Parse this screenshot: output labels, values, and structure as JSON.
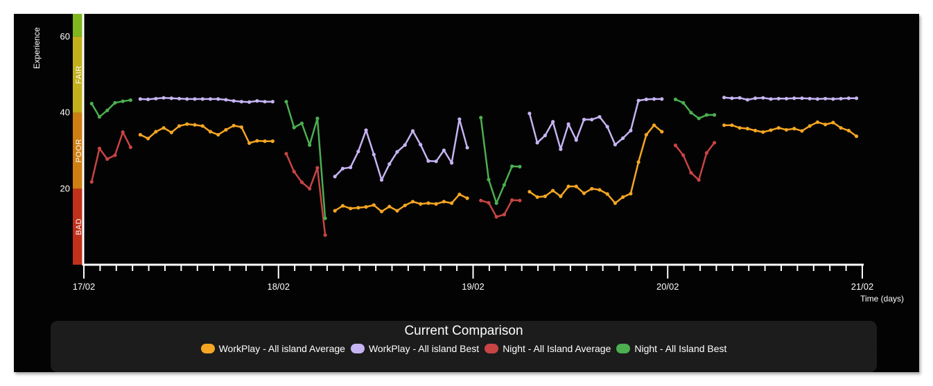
{
  "colors": {
    "workplay_avg": "#f5a623",
    "workplay_best": "#c6b4f2",
    "night_avg": "#c94444",
    "night_best": "#4caf50",
    "axis": "#ffffff"
  },
  "chart_data": {
    "type": "line",
    "ylabel": "Experience",
    "xlabel": "Time (days)",
    "ylim": [
      0,
      66
    ],
    "y_ticks": [
      20,
      40,
      60
    ],
    "x_ticks": [
      "17/02",
      "18/02",
      "19/02",
      "20/02",
      "21/02"
    ],
    "xlim": [
      0,
      4
    ],
    "bands": [
      {
        "label": "BAD",
        "from": 0,
        "to": 20,
        "color": "#c0301b"
      },
      {
        "label": "POOR",
        "from": 20,
        "to": 40,
        "color": "#cf7e12"
      },
      {
        "label": "FAIR",
        "from": 40,
        "to": 60,
        "color": "#c3b11c"
      },
      {
        "label": "",
        "from": 60,
        "to": 66,
        "color": "#7fb81e"
      }
    ],
    "legend_position": "bottom",
    "series": [
      {
        "name": "WorkPlay - All island Average",
        "color_key": "workplay_avg",
        "segments": [
          [
            [
              0.29,
              34.2
            ],
            [
              0.33,
              33.2
            ],
            [
              0.37,
              35.0
            ],
            [
              0.41,
              36.0
            ],
            [
              0.45,
              34.8
            ],
            [
              0.49,
              36.5
            ],
            [
              0.53,
              37.0
            ],
            [
              0.57,
              36.8
            ],
            [
              0.61,
              36.5
            ],
            [
              0.65,
              35.0
            ],
            [
              0.69,
              34.2
            ],
            [
              0.73,
              35.5
            ],
            [
              0.77,
              36.6
            ],
            [
              0.81,
              36.2
            ],
            [
              0.85,
              32.0
            ],
            [
              0.89,
              32.6
            ],
            [
              0.93,
              32.5
            ],
            [
              0.97,
              32.5
            ]
          ],
          [
            [
              1.29,
              14.2
            ],
            [
              1.33,
              15.5
            ],
            [
              1.37,
              14.8
            ],
            [
              1.41,
              15.0
            ],
            [
              1.45,
              15.2
            ],
            [
              1.49,
              15.7
            ],
            [
              1.53,
              14.0
            ],
            [
              1.57,
              15.3
            ],
            [
              1.61,
              14.2
            ],
            [
              1.65,
              15.6
            ],
            [
              1.69,
              16.6
            ],
            [
              1.73,
              16.0
            ],
            [
              1.77,
              16.2
            ],
            [
              1.81,
              16.0
            ],
            [
              1.85,
              16.6
            ],
            [
              1.89,
              16.2
            ],
            [
              1.93,
              18.5
            ],
            [
              1.97,
              17.5
            ]
          ],
          [
            [
              2.29,
              19.2
            ],
            [
              2.33,
              17.8
            ],
            [
              2.37,
              18.0
            ],
            [
              2.41,
              19.5
            ],
            [
              2.45,
              18.0
            ],
            [
              2.49,
              20.6
            ],
            [
              2.53,
              20.6
            ],
            [
              2.57,
              18.8
            ],
            [
              2.61,
              20.0
            ],
            [
              2.65,
              19.7
            ],
            [
              2.69,
              18.6
            ],
            [
              2.73,
              16.2
            ],
            [
              2.77,
              17.8
            ],
            [
              2.81,
              18.7
            ],
            [
              2.85,
              27.0
            ],
            [
              2.89,
              34.2
            ],
            [
              2.93,
              36.7
            ],
            [
              2.97,
              35.0
            ]
          ],
          [
            [
              3.29,
              36.7
            ],
            [
              3.33,
              36.7
            ],
            [
              3.37,
              36.0
            ],
            [
              3.41,
              35.8
            ],
            [
              3.45,
              35.3
            ],
            [
              3.49,
              34.9
            ],
            [
              3.53,
              35.4
            ],
            [
              3.57,
              36.0
            ],
            [
              3.61,
              35.5
            ],
            [
              3.65,
              35.8
            ],
            [
              3.69,
              35.2
            ],
            [
              3.73,
              36.5
            ],
            [
              3.77,
              37.5
            ],
            [
              3.81,
              36.9
            ],
            [
              3.85,
              37.4
            ],
            [
              3.89,
              36.0
            ],
            [
              3.93,
              35.3
            ],
            [
              3.97,
              33.8
            ]
          ]
        ]
      },
      {
        "name": "WorkPlay - All island Best",
        "color_key": "workplay_best",
        "segments": [
          [
            [
              0.29,
              43.6
            ],
            [
              0.33,
              43.5
            ],
            [
              0.37,
              43.7
            ],
            [
              0.41,
              43.9
            ],
            [
              0.45,
              43.8
            ],
            [
              0.49,
              43.7
            ],
            [
              0.53,
              43.6
            ],
            [
              0.57,
              43.6
            ],
            [
              0.61,
              43.6
            ],
            [
              0.65,
              43.6
            ],
            [
              0.69,
              43.6
            ],
            [
              0.73,
              43.4
            ],
            [
              0.77,
              43.1
            ],
            [
              0.81,
              42.9
            ],
            [
              0.85,
              42.8
            ],
            [
              0.89,
              43.1
            ],
            [
              0.93,
              42.9
            ],
            [
              0.97,
              42.9
            ]
          ],
          [
            [
              1.29,
              23.2
            ],
            [
              1.33,
              25.3
            ],
            [
              1.37,
              25.6
            ],
            [
              1.41,
              29.8
            ],
            [
              1.45,
              35.4
            ],
            [
              1.49,
              29.0
            ],
            [
              1.53,
              22.3
            ],
            [
              1.57,
              26.5
            ],
            [
              1.61,
              29.7
            ],
            [
              1.65,
              31.5
            ],
            [
              1.69,
              35.2
            ],
            [
              1.73,
              31.6
            ],
            [
              1.77,
              27.3
            ],
            [
              1.81,
              27.2
            ],
            [
              1.85,
              30.1
            ],
            [
              1.89,
              26.8
            ],
            [
              1.93,
              38.3
            ],
            [
              1.97,
              30.8
            ]
          ],
          [
            [
              2.29,
              39.8
            ],
            [
              2.33,
              32.1
            ],
            [
              2.37,
              34.0
            ],
            [
              2.41,
              37.6
            ],
            [
              2.45,
              30.4
            ],
            [
              2.49,
              37.0
            ],
            [
              2.53,
              32.8
            ],
            [
              2.57,
              38.2
            ],
            [
              2.61,
              38.2
            ],
            [
              2.65,
              38.9
            ],
            [
              2.69,
              36.3
            ],
            [
              2.73,
              31.6
            ],
            [
              2.77,
              33.3
            ],
            [
              2.81,
              35.3
            ],
            [
              2.85,
              43.2
            ],
            [
              2.89,
              43.5
            ],
            [
              2.93,
              43.6
            ],
            [
              2.97,
              43.6
            ]
          ],
          [
            [
              3.29,
              44.0
            ],
            [
              3.33,
              43.8
            ],
            [
              3.37,
              43.9
            ],
            [
              3.41,
              43.4
            ],
            [
              3.45,
              43.8
            ],
            [
              3.49,
              43.9
            ],
            [
              3.53,
              43.6
            ],
            [
              3.57,
              43.7
            ],
            [
              3.61,
              43.7
            ],
            [
              3.65,
              43.8
            ],
            [
              3.69,
              43.8
            ],
            [
              3.73,
              43.7
            ],
            [
              3.77,
              43.6
            ],
            [
              3.81,
              43.7
            ],
            [
              3.85,
              43.6
            ],
            [
              3.89,
              43.7
            ],
            [
              3.93,
              43.8
            ],
            [
              3.97,
              43.8
            ]
          ]
        ]
      },
      {
        "name": "Night - All Island Average",
        "color_key": "night_avg",
        "segments": [
          [
            [
              0.04,
              21.8
            ],
            [
              0.08,
              30.6
            ],
            [
              0.12,
              27.8
            ],
            [
              0.16,
              28.8
            ],
            [
              0.2,
              34.9
            ],
            [
              0.24,
              30.9
            ]
          ],
          [
            [
              1.04,
              29.2
            ],
            [
              1.08,
              24.5
            ],
            [
              1.12,
              21.7
            ],
            [
              1.16,
              20.0
            ],
            [
              1.2,
              25.5
            ],
            [
              1.24,
              7.8
            ]
          ],
          [
            [
              2.04,
              16.9
            ],
            [
              2.08,
              16.3
            ],
            [
              2.12,
              12.6
            ],
            [
              2.16,
              13.2
            ],
            [
              2.2,
              17.0
            ],
            [
              2.24,
              16.9
            ]
          ],
          [
            [
              3.04,
              31.4
            ],
            [
              3.08,
              28.8
            ],
            [
              3.12,
              24.2
            ],
            [
              3.16,
              22.3
            ],
            [
              3.2,
              29.4
            ],
            [
              3.24,
              32.1
            ]
          ]
        ]
      },
      {
        "name": "Night - All Island Best",
        "color_key": "night_best",
        "segments": [
          [
            [
              0.04,
              42.4
            ],
            [
              0.08,
              38.9
            ],
            [
              0.12,
              40.6
            ],
            [
              0.16,
              42.6
            ],
            [
              0.2,
              43.0
            ],
            [
              0.24,
              43.3
            ]
          ],
          [
            [
              1.04,
              42.9
            ],
            [
              1.08,
              36.1
            ],
            [
              1.12,
              37.2
            ],
            [
              1.16,
              31.5
            ],
            [
              1.2,
              38.5
            ],
            [
              1.24,
              12.2
            ]
          ],
          [
            [
              2.04,
              38.7
            ],
            [
              2.08,
              22.4
            ],
            [
              2.12,
              16.2
            ],
            [
              2.16,
              21.0
            ],
            [
              2.2,
              25.9
            ],
            [
              2.24,
              25.8
            ]
          ],
          [
            [
              3.04,
              43.5
            ],
            [
              3.08,
              42.6
            ],
            [
              3.12,
              40.0
            ],
            [
              3.16,
              38.5
            ],
            [
              3.2,
              39.4
            ],
            [
              3.24,
              39.4
            ]
          ]
        ]
      }
    ]
  },
  "legend": {
    "title": "Current Comparison",
    "items": [
      {
        "label": "WorkPlay - All island Average",
        "color_key": "workplay_avg"
      },
      {
        "label": "WorkPlay - All island Best",
        "color_key": "workplay_best"
      },
      {
        "label": "Night - All Island Average",
        "color_key": "night_avg"
      },
      {
        "label": "Night - All Island Best",
        "color_key": "night_best"
      }
    ]
  }
}
